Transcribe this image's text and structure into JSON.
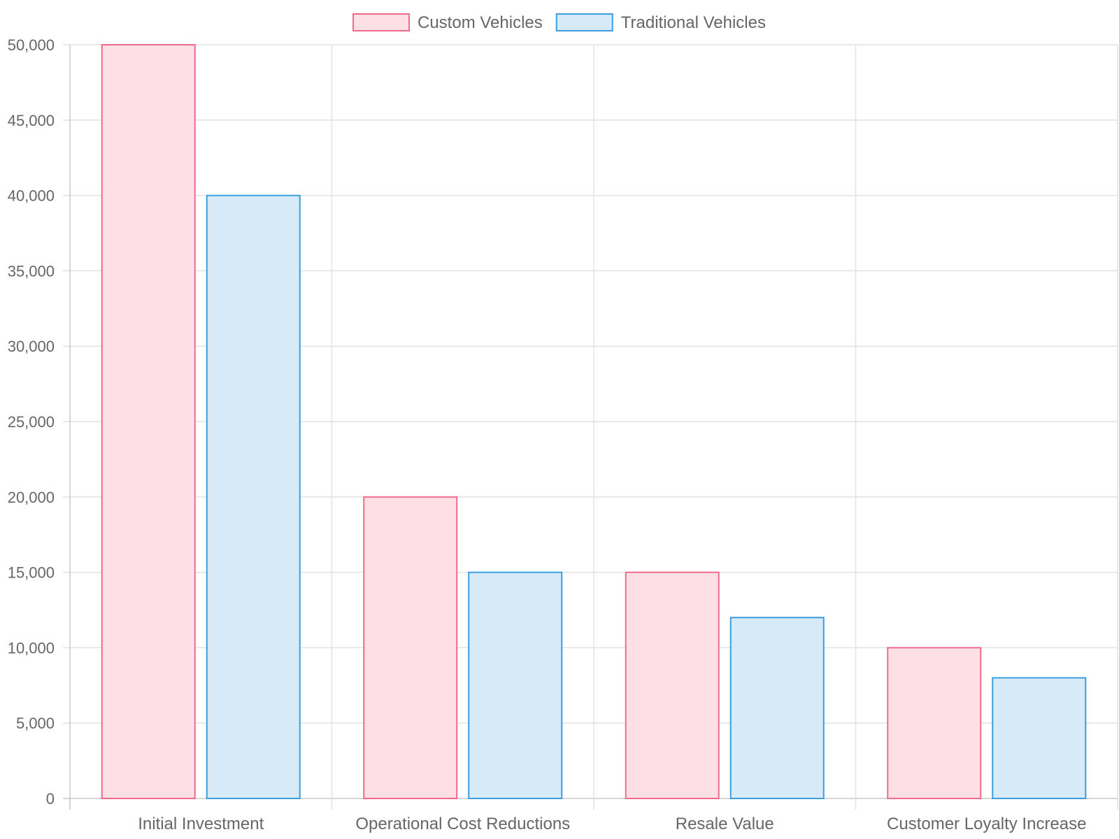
{
  "chart_data": {
    "type": "bar",
    "categories": [
      "Initial Investment",
      "Operational Cost Reductions",
      "Resale Value",
      "Customer Loyalty Increase"
    ],
    "series": [
      {
        "name": "Custom Vehicles",
        "values": [
          50000,
          20000,
          15000,
          10000
        ],
        "fill": "#fde0e6",
        "stroke": "#f06a8c"
      },
      {
        "name": "Traditional Vehicles",
        "values": [
          40000,
          15000,
          12000,
          8000
        ],
        "fill": "#d6eaf8",
        "stroke": "#3a9ee0"
      }
    ],
    "ylim": [
      0,
      50000
    ],
    "yticks": [
      0,
      5000,
      10000,
      15000,
      20000,
      25000,
      30000,
      35000,
      40000,
      45000,
      50000
    ],
    "ytick_labels": [
      "0",
      "5,000",
      "10,000",
      "15,000",
      "20,000",
      "25,000",
      "30,000",
      "35,000",
      "40,000",
      "45,000",
      "50,000"
    ],
    "grid": true,
    "legend_position": "top-center",
    "title": "",
    "xlabel": "",
    "ylabel": ""
  }
}
